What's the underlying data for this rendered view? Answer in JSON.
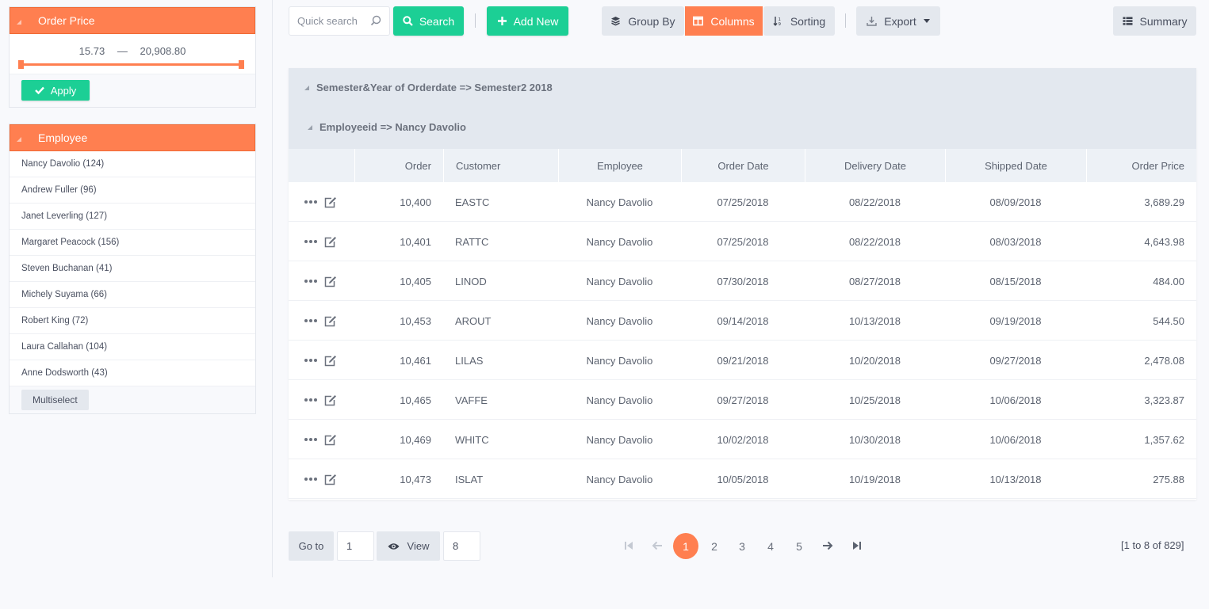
{
  "sidebar": {
    "price_filter": {
      "title": "Order Price",
      "min": "15.73",
      "separator": "—",
      "max": "20,908.80",
      "apply_label": "Apply"
    },
    "employee_filter": {
      "title": "Employee",
      "items": [
        "Nancy Davolio (124)",
        "Andrew Fuller (96)",
        "Janet Leverling (127)",
        "Margaret Peacock (156)",
        "Steven Buchanan (41)",
        "Michely Suyama (66)",
        "Robert King (72)",
        "Laura Callahan (104)",
        "Anne Dodsworth (43)"
      ],
      "multiselect_label": "Multiselect"
    }
  },
  "toolbar": {
    "search_placeholder": "Quick search",
    "search_label": "Search",
    "add_label": "Add New",
    "group_by_label": "Group By",
    "columns_label": "Columns",
    "sorting_label": "Sorting",
    "export_label": "Export",
    "summary_label": "Summary"
  },
  "grid": {
    "group1": "Semester&Year of Orderdate => Semester2 2018",
    "group2": "Employeeid => Nancy Davolio",
    "columns": [
      "Order",
      "Customer",
      "Employee",
      "Order Date",
      "Delivery Date",
      "Shipped Date",
      "Order Price"
    ],
    "rows": [
      {
        "order": "10,400",
        "customer": "EASTC",
        "employee": "Nancy Davolio",
        "order_date": "07/25/2018",
        "delivery_date": "08/22/2018",
        "shipped_date": "08/09/2018",
        "price": "3,689.29"
      },
      {
        "order": "10,401",
        "customer": "RATTC",
        "employee": "Nancy Davolio",
        "order_date": "07/25/2018",
        "delivery_date": "08/22/2018",
        "shipped_date": "08/03/2018",
        "price": "4,643.98"
      },
      {
        "order": "10,405",
        "customer": "LINOD",
        "employee": "Nancy Davolio",
        "order_date": "07/30/2018",
        "delivery_date": "08/27/2018",
        "shipped_date": "08/15/2018",
        "price": "484.00"
      },
      {
        "order": "10,453",
        "customer": "AROUT",
        "employee": "Nancy Davolio",
        "order_date": "09/14/2018",
        "delivery_date": "10/13/2018",
        "shipped_date": "09/19/2018",
        "price": "544.50"
      },
      {
        "order": "10,461",
        "customer": "LILAS",
        "employee": "Nancy Davolio",
        "order_date": "09/21/2018",
        "delivery_date": "10/20/2018",
        "shipped_date": "09/27/2018",
        "price": "2,478.08"
      },
      {
        "order": "10,465",
        "customer": "VAFFE",
        "employee": "Nancy Davolio",
        "order_date": "09/27/2018",
        "delivery_date": "10/25/2018",
        "shipped_date": "10/06/2018",
        "price": "3,323.87"
      },
      {
        "order": "10,469",
        "customer": "WHITC",
        "employee": "Nancy Davolio",
        "order_date": "10/02/2018",
        "delivery_date": "10/30/2018",
        "shipped_date": "10/06/2018",
        "price": "1,357.62"
      },
      {
        "order": "10,473",
        "customer": "ISLAT",
        "employee": "Nancy Davolio",
        "order_date": "10/05/2018",
        "delivery_date": "10/19/2018",
        "shipped_date": "10/13/2018",
        "price": "275.88"
      }
    ]
  },
  "pager": {
    "goto_label": "Go to",
    "goto_value": "1",
    "view_label": "View",
    "view_value": "8",
    "pages": [
      "1",
      "2",
      "3",
      "4",
      "5"
    ],
    "active_page": "1",
    "summary": "[1 to 8 of 829]"
  },
  "colors": {
    "accent": "#ff7f50",
    "green": "#1ccf95",
    "grey_button": "#e4e8ee"
  }
}
